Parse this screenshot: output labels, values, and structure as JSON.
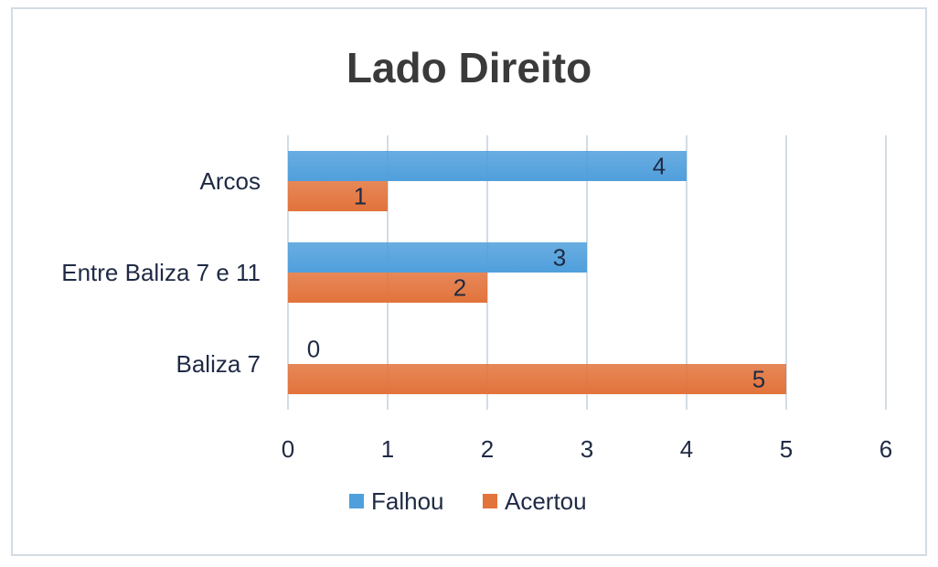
{
  "chart_data": {
    "type": "bar",
    "orientation": "horizontal",
    "title": "Lado Direito",
    "categories": [
      "Arcos",
      "Entre Baliza 7 e 11",
      "Baliza 7"
    ],
    "series": [
      {
        "name": "Falhou",
        "values": [
          4,
          3,
          0
        ],
        "color": "#4f9fdc"
      },
      {
        "name": "Acertou",
        "values": [
          1,
          2,
          5
        ],
        "color": "#e2733b"
      }
    ],
    "xlim": [
      0,
      6
    ],
    "xticks": [
      "0",
      "1",
      "2",
      "3",
      "4",
      "5",
      "6"
    ],
    "grid": "vertical",
    "legend_position": "bottom"
  }
}
